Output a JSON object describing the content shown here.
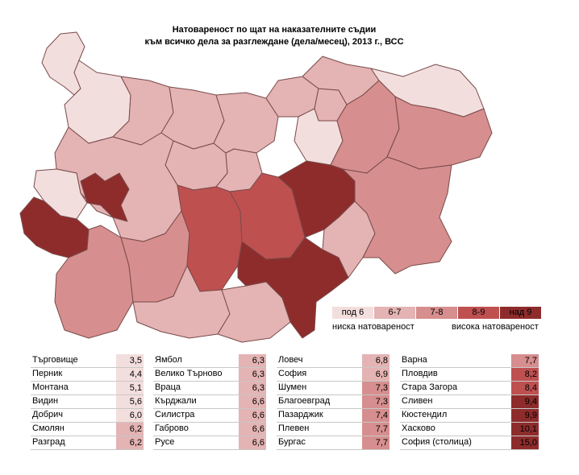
{
  "title_line1": "Натовареност по щат на наказателните съдии",
  "title_line2": "към всичко дела за разглеждане (дела/месец), 2013 г., ВСС",
  "legend": {
    "bins": [
      {
        "label": "под 6",
        "color": "#f3dede"
      },
      {
        "label": "6-7",
        "color": "#e4b3b3"
      },
      {
        "label": "7-8",
        "color": "#d68e8e"
      },
      {
        "label": "8-9",
        "color": "#bf5050"
      },
      {
        "label": "над 9",
        "color": "#8e2c2c"
      }
    ],
    "low_caption": "ниска натовареност",
    "high_caption": "висока натовареност"
  },
  "districts": [
    {
      "name": "Търговище",
      "value": "3,5"
    },
    {
      "name": "Перник",
      "value": "4,4"
    },
    {
      "name": "Монтана",
      "value": "5,1"
    },
    {
      "name": "Видин",
      "value": "5,6"
    },
    {
      "name": "Добрич",
      "value": "6,0"
    },
    {
      "name": "Смолян",
      "value": "6,2"
    },
    {
      "name": "Разград",
      "value": "6,2"
    },
    {
      "name": "Ямбол",
      "value": "6,3"
    },
    {
      "name": "Велико Търново",
      "value": "6,3"
    },
    {
      "name": "Враца",
      "value": "6,3"
    },
    {
      "name": "Кърджали",
      "value": "6,6"
    },
    {
      "name": "Силистра",
      "value": "6,6"
    },
    {
      "name": "Габрово",
      "value": "6,6"
    },
    {
      "name": "Русе",
      "value": "6,6"
    },
    {
      "name": "Ловеч",
      "value": "6,8"
    },
    {
      "name": "София",
      "value": "6,9"
    },
    {
      "name": "Шумен",
      "value": "7,3"
    },
    {
      "name": "Благоевград",
      "value": "7,3"
    },
    {
      "name": "Пазарджик",
      "value": "7,4"
    },
    {
      "name": "Плевен",
      "value": "7,7"
    },
    {
      "name": "Бургас",
      "value": "7,7"
    },
    {
      "name": "Варна",
      "value": "7,7"
    },
    {
      "name": "Пловдив",
      "value": "8,2"
    },
    {
      "name": "Стара Загора",
      "value": "8,4"
    },
    {
      "name": "Сливен",
      "value": "9,4"
    },
    {
      "name": "Кюстендил",
      "value": "9,9"
    },
    {
      "name": "Хасково",
      "value": "10,1"
    },
    {
      "name": "София (столица)",
      "value": "15,0"
    }
  ]
}
